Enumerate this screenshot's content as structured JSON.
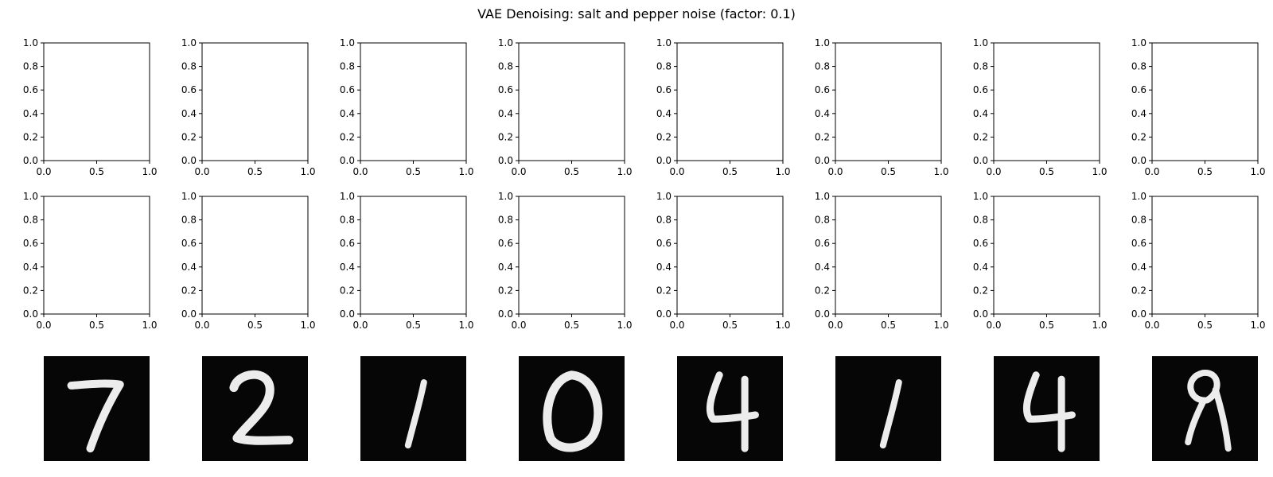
{
  "figure": {
    "title": "VAE Denoising: salt and pepper noise (factor: 0.1)"
  },
  "chart_data": {
    "type": "grid",
    "title": "VAE Denoising: salt and pepper noise (factor: 0.1)",
    "rows": [
      {
        "row": 1,
        "panel_type": "empty_axes",
        "panel_count": 8,
        "xlim": [
          0.0,
          1.0
        ],
        "ylim": [
          0.0,
          1.0
        ],
        "x_tick_labels": [
          "0.0",
          "0.5",
          "1.0"
        ],
        "y_tick_labels": [
          "0.0",
          "0.2",
          "0.4",
          "0.6",
          "0.8",
          "1.0"
        ]
      },
      {
        "row": 2,
        "panel_type": "empty_axes",
        "panel_count": 8,
        "xlim": [
          0.0,
          1.0
        ],
        "ylim": [
          0.0,
          1.0
        ],
        "x_tick_labels": [
          "0.0",
          "0.5",
          "1.0"
        ],
        "y_tick_labels": [
          "0.0",
          "0.2",
          "0.4",
          "0.6",
          "0.8",
          "1.0"
        ]
      },
      {
        "row": 3,
        "panel_type": "grayscale_image",
        "panel_count": 8,
        "images": [
          {
            "digit": "7"
          },
          {
            "digit": "2"
          },
          {
            "digit": "1"
          },
          {
            "digit": "0"
          },
          {
            "digit": "4"
          },
          {
            "digit": "1"
          },
          {
            "digit": "4"
          },
          {
            "digit": "9"
          }
        ]
      }
    ]
  },
  "colors": {
    "image_background": "#060606",
    "stroke": "#ececec",
    "axis": "#000000"
  }
}
